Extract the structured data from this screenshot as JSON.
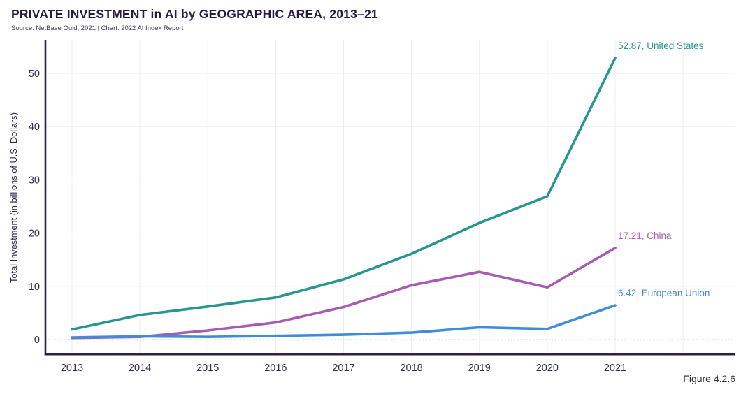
{
  "header": {
    "title": "PRIVATE INVESTMENT in AI by GEOGRAPHIC AREA, 2013–21",
    "subtitle": "Source: NetBase Quid, 2021 | Chart: 2022 AI Index Report"
  },
  "figure_caption": "Figure 4.2.6",
  "colors": {
    "title_text": "#261c41",
    "axis_line": "#2b2144",
    "tick_label": "#352c51",
    "grid_line": "#eeedf0",
    "zero_line": "#d8d5dd"
  },
  "chart_data": {
    "type": "line",
    "title": "PRIVATE INVESTMENT in AI by GEOGRAPHIC AREA, 2013–21",
    "xlabel": "",
    "ylabel": "Total Investment (in billions of U.S. Dollars)",
    "x": [
      2013,
      2014,
      2015,
      2016,
      2017,
      2018,
      2019,
      2020,
      2021
    ],
    "series": [
      {
        "name": "United States",
        "color": "#27968f",
        "values": [
          1.9,
          4.6,
          6.2,
          7.9,
          11.3,
          16.1,
          21.9,
          26.9,
          52.87
        ],
        "end_label": "52.87, United States"
      },
      {
        "name": "China",
        "color": "#a75bb3",
        "values": [
          0.3,
          0.5,
          1.7,
          3.2,
          6.1,
          10.2,
          12.7,
          9.8,
          17.21
        ],
        "end_label": "17.21, China"
      },
      {
        "name": "European Union",
        "color": "#3f8dd8",
        "values": [
          0.4,
          0.6,
          0.5,
          0.7,
          0.9,
          1.3,
          2.3,
          2.0,
          6.42
        ],
        "end_label": "6.42, European Union"
      }
    ],
    "ylim": [
      0,
      56.5
    ],
    "yticks": [
      0,
      10,
      20,
      30,
      40,
      50
    ],
    "grid": true,
    "legend_position": "end-of-line-labels"
  }
}
